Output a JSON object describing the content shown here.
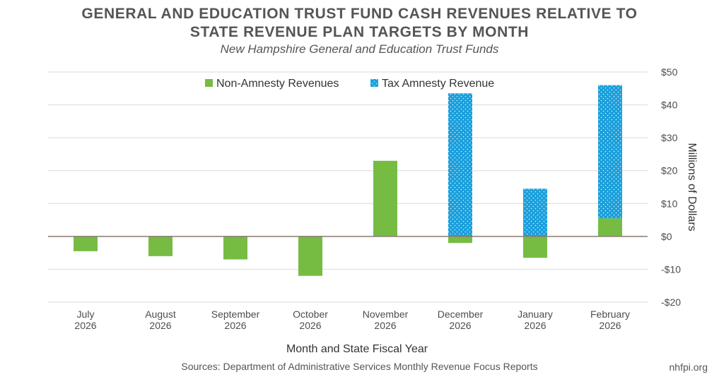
{
  "title_line1": "GENERAL AND EDUCATION TRUST FUND CASH REVENUES RELATIVE TO",
  "title_line2": "STATE REVENUE PLAN TARGETS BY MONTH",
  "subtitle": "New Hampshire General and Education Trust Funds",
  "source": "Sources: Department of Administrative Services Monthly Revenue Focus Reports",
  "website": "nhfpi.org",
  "colors": {
    "non_amnesty": "#76bc43",
    "amnesty": "#1a9fdb",
    "zero_line": "#8a7a72",
    "grid": "#d9d9d9"
  },
  "chart_data": {
    "type": "bar",
    "stacked": true,
    "categories": [
      [
        "July",
        "2026"
      ],
      [
        "August",
        "2026"
      ],
      [
        "September",
        "2026"
      ],
      [
        "October",
        "2026"
      ],
      [
        "November",
        "2026"
      ],
      [
        "December",
        "2026"
      ],
      [
        "January",
        "2026"
      ],
      [
        "February",
        "2026"
      ]
    ],
    "series": [
      {
        "name": "Non-Amnesty Revenues",
        "values": [
          -4.5,
          -6,
          -7,
          -12,
          23,
          -2,
          -6.5,
          5.5
        ]
      },
      {
        "name": "Tax Amnesty Revenue",
        "values": [
          0,
          0,
          0,
          0,
          0,
          43.5,
          14.5,
          40.5
        ]
      }
    ],
    "xlabel": "Month and State Fiscal Year",
    "ylabel": "Millions of Dollars",
    "ylim": [
      -20,
      50
    ],
    "yticks": [
      -20,
      -10,
      0,
      10,
      20,
      30,
      40,
      50
    ],
    "ytick_labels": [
      "-$20",
      "-$10",
      "$0",
      "$10",
      "$20",
      "$30",
      "$40",
      "$50"
    ],
    "grid": true,
    "y_axis_side": "right",
    "legend_position": "top-center"
  }
}
